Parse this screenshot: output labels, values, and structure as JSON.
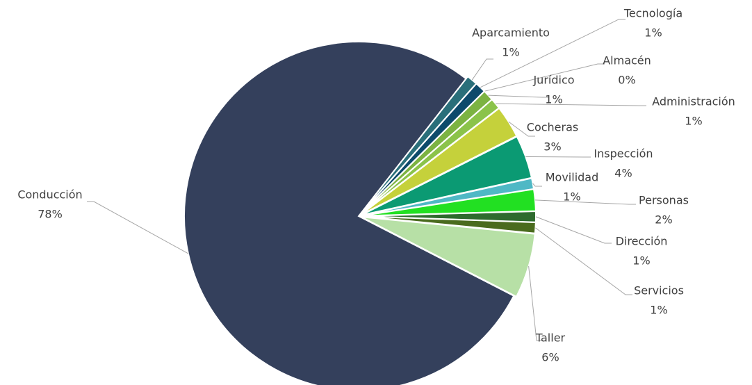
{
  "chart_data": {
    "type": "pie",
    "categories": [
      "Aparcamiento",
      "Tecnología",
      "Almacén",
      "Jurídico",
      "Administración",
      "Cocheras",
      "Inspección",
      "Movilidad",
      "Personas",
      "Dirección",
      "Servicios",
      "Taller",
      "Conducción"
    ],
    "values": [
      1,
      1,
      0,
      1,
      1,
      3,
      4,
      1,
      2,
      1,
      1,
      6,
      78
    ],
    "value_labels": [
      "1%",
      "1%",
      "0%",
      "1%",
      "1%",
      "3%",
      "4%",
      "1%",
      "2%",
      "1%",
      "1%",
      "6%",
      "78%"
    ],
    "colors": [
      "#2a6f7a",
      "#0d4a6b",
      "#4c9a55",
      "#7cb342",
      "#8bc34a",
      "#c5d13b",
      "#0b9a73",
      "#4fb8c5",
      "#22e022",
      "#2e6b2e",
      "#4a6b1e",
      "#b7e0a6",
      "#34405c"
    ]
  }
}
